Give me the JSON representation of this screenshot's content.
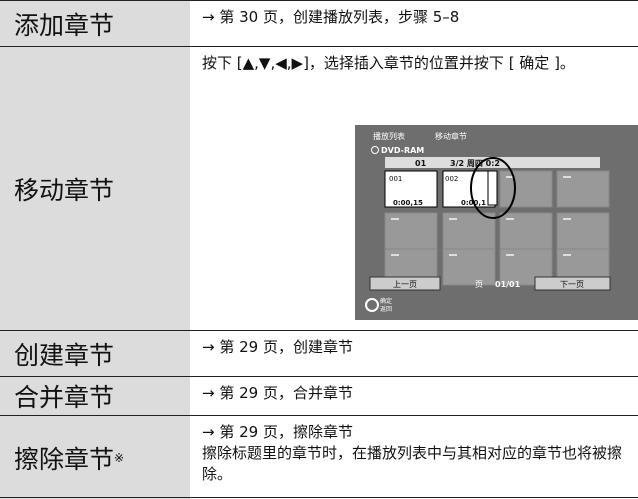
{
  "rows": [
    {
      "label": "添加章节",
      "lines": [
        "→ 第 30 页，创建播放列表，步骤 5–8"
      ]
    },
    {
      "label": "移动章节",
      "lines": [
        "按下 [▲,▼,◀,▶]，选择插入章节的位置并按下 [ 确定 ]。"
      ]
    },
    {
      "label": "创建章节",
      "lines": [
        "→ 第 29 页，创建章节"
      ]
    },
    {
      "label": "合并章节",
      "lines": [
        "→ 第 29 页，合并章节"
      ]
    },
    {
      "label": "擦除章节",
      "mark": "※",
      "lines": [
        "→ 第 29 页，擦除章节",
        "擦除标题里的章节时，在播放列表中与其相对应的章节也将被擦除。"
      ]
    }
  ],
  "screen": {
    "title": "播放列表",
    "mode": "移动章节",
    "disc": "DVD-RAM",
    "number": "01",
    "date": "3/2 周四 0:2",
    "thumbs": [
      "001",
      "002"
    ],
    "time": "0:00,15",
    "time2": "0:00,1",
    "prev": "上一页",
    "page_label": "页",
    "page": "01/01",
    "next": "下一页",
    "enter": "确定",
    "return": "返回"
  }
}
